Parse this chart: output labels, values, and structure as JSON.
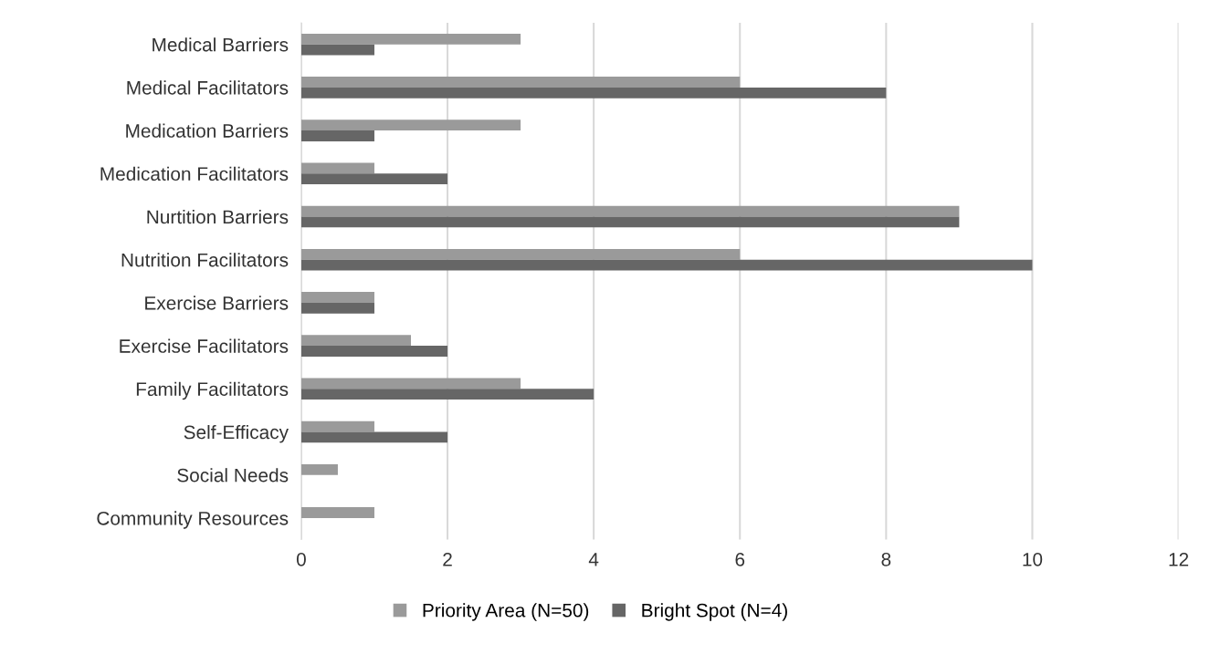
{
  "chart_data": {
    "type": "bar",
    "orientation": "horizontal",
    "categories": [
      "Medical Barriers",
      "Medical Facilitators",
      "Medication Barriers",
      "Medication Facilitators",
      "Nurtition Barriers",
      "Nutrition Facilitators",
      "Exercise Barriers",
      "Exercise Facilitators",
      "Family Facilitators",
      "Self-Efficacy",
      "Social Needs",
      "Community Resources"
    ],
    "series": [
      {
        "name": "Priority Area (N=50)",
        "color": "#9a9a9a",
        "values": [
          3,
          6,
          3,
          1,
          9,
          6,
          1,
          1.5,
          3,
          1,
          0.5,
          1
        ]
      },
      {
        "name": "Bright Spot (N=4)",
        "color": "#666666",
        "values": [
          1,
          8,
          1,
          2,
          9,
          10,
          1,
          2,
          4,
          2,
          0,
          0
        ]
      }
    ],
    "xlim": [
      0,
      12
    ],
    "xticks": [
      0,
      2,
      4,
      6,
      8,
      10,
      12
    ],
    "grid": "x",
    "legend": "bottom"
  }
}
